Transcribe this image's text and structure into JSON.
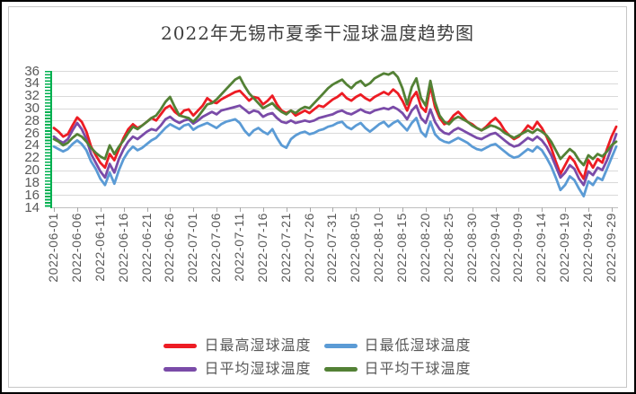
{
  "chart_data": {
    "type": "line",
    "title": "2022年无锡市夏季干湿球温度趋势图",
    "xlabel": "",
    "ylabel": "",
    "x_start": "2022-06-01",
    "x_end": "2022-09-30",
    "n_points": 122,
    "x_tick_labels": [
      "2022-06-01",
      "2022-06-06",
      "2022-06-11",
      "2022-06-16",
      "2022-06-21",
      "2022-06-26",
      "2022-07-01",
      "2022-07-06",
      "2022-07-11",
      "2022-07-16",
      "2022-07-21",
      "2022-07-26",
      "2022-07-31",
      "2022-08-05",
      "2022-08-10",
      "2022-08-15",
      "2022-08-20",
      "2022-08-25",
      "2022-08-30",
      "2022-09-04",
      "2022-09-09",
      "2022-09-14",
      "2022-09-19",
      "2022-09-24",
      "2022-09-29"
    ],
    "x_tick_interval_days": 5,
    "ylim": [
      14,
      36
    ],
    "y_ticks": [
      14,
      16,
      18,
      20,
      22,
      24,
      26,
      28,
      30,
      32,
      34,
      36
    ],
    "grid": true,
    "legend_position": "bottom",
    "colors": {
      "y_axis": "#00B050",
      "x_axis": "#bfbfbf",
      "gridline": "#d9d9d9",
      "tick": "#a6a6a6",
      "label_text": "#595959",
      "title_text": "#3f3f3f"
    },
    "series": [
      {
        "name": "日最高湿球温度",
        "key": "max-wet-bulb",
        "color": "#ED1C24",
        "values": [
          26.8,
          26.2,
          25.4,
          25.8,
          27.2,
          28.5,
          27.8,
          26.2,
          23.8,
          22.4,
          21.2,
          20.4,
          22.6,
          21.6,
          23.4,
          25.2,
          26.6,
          27.4,
          26.8,
          27.2,
          27.8,
          28.4,
          28.0,
          29.0,
          30.0,
          30.4,
          29.4,
          28.8,
          29.6,
          29.8,
          28.8,
          29.6,
          30.4,
          31.6,
          31.0,
          30.8,
          31.4,
          31.8,
          32.2,
          32.6,
          32.8,
          32.0,
          31.2,
          31.8,
          31.6,
          30.6,
          31.2,
          32.0,
          30.6,
          29.6,
          29.2,
          29.6,
          28.8,
          29.2,
          29.6,
          29.2,
          29.8,
          30.4,
          30.2,
          30.8,
          31.4,
          31.8,
          32.4,
          31.6,
          31.2,
          31.8,
          32.2,
          31.6,
          31.2,
          31.8,
          32.2,
          32.6,
          32.2,
          33.0,
          32.4,
          31.2,
          29.6,
          31.6,
          32.6,
          30.2,
          29.4,
          33.6,
          30.2,
          28.4,
          27.4,
          27.8,
          28.8,
          29.4,
          28.6,
          27.8,
          27.4,
          26.8,
          26.4,
          27.0,
          27.8,
          28.4,
          27.6,
          26.4,
          25.6,
          25.0,
          25.4,
          26.2,
          27.2,
          26.6,
          27.8,
          26.8,
          25.4,
          23.6,
          21.4,
          19.4,
          20.8,
          22.2,
          21.4,
          19.8,
          18.6,
          21.6,
          20.4,
          21.8,
          21.2,
          23.4,
          25.4,
          27.0
        ]
      },
      {
        "name": "日最低湿球温度",
        "key": "min-wet-bulb",
        "color": "#5B9BD5",
        "values": [
          23.8,
          23.4,
          23.0,
          23.4,
          24.2,
          24.8,
          24.2,
          23.2,
          21.4,
          20.2,
          18.6,
          17.6,
          19.6,
          17.8,
          20.0,
          21.8,
          23.0,
          23.8,
          23.2,
          23.6,
          24.2,
          24.8,
          25.2,
          26.0,
          26.8,
          27.4,
          27.0,
          26.6,
          27.2,
          27.4,
          26.5,
          27.0,
          27.3,
          27.6,
          27.2,
          26.8,
          27.4,
          27.8,
          28.0,
          28.2,
          27.6,
          26.4,
          25.6,
          26.4,
          26.8,
          26.2,
          25.8,
          26.6,
          25.2,
          24.0,
          23.6,
          25.0,
          25.6,
          26.0,
          26.2,
          25.8,
          26.0,
          26.4,
          26.6,
          27.0,
          27.2,
          27.6,
          27.8,
          27.0,
          26.6,
          27.2,
          27.6,
          26.8,
          26.2,
          26.8,
          27.4,
          27.8,
          27.0,
          27.6,
          28.0,
          27.2,
          26.4,
          27.6,
          28.4,
          26.2,
          25.4,
          27.8,
          25.8,
          25.0,
          24.6,
          24.4,
          24.8,
          25.2,
          24.8,
          24.4,
          23.8,
          23.4,
          23.2,
          23.6,
          24.0,
          24.2,
          23.6,
          23.0,
          22.4,
          22.0,
          22.2,
          22.8,
          23.4,
          23.0,
          23.8,
          23.2,
          22.0,
          20.6,
          18.8,
          16.8,
          17.6,
          19.0,
          18.4,
          17.0,
          15.8,
          18.2,
          17.6,
          18.8,
          18.4,
          20.2,
          22.0,
          23.8
        ]
      },
      {
        "name": "日平均湿球温度",
        "key": "avg-wet-bulb",
        "color": "#7A4BA8",
        "values": [
          25.4,
          24.8,
          24.4,
          25.0,
          26.4,
          27.6,
          26.6,
          25.0,
          22.6,
          21.2,
          19.8,
          18.8,
          21.0,
          19.6,
          21.8,
          23.4,
          24.6,
          25.4,
          25.0,
          25.6,
          26.2,
          26.6,
          26.4,
          27.2,
          28.2,
          28.6,
          28.0,
          27.6,
          28.0,
          28.2,
          27.5,
          28.0,
          28.6,
          29.0,
          29.4,
          29.0,
          29.6,
          29.8,
          30.0,
          30.2,
          30.4,
          29.8,
          29.2,
          29.6,
          29.4,
          28.6,
          29.0,
          29.2,
          28.4,
          27.8,
          27.6,
          28.0,
          27.6,
          27.8,
          28.0,
          27.8,
          28.0,
          28.4,
          28.6,
          28.8,
          29.0,
          29.4,
          29.6,
          29.2,
          29.0,
          29.4,
          29.8,
          29.4,
          29.2,
          29.6,
          29.8,
          30.0,
          29.8,
          30.2,
          29.8,
          29.2,
          28.2,
          29.6,
          30.4,
          28.4,
          27.6,
          29.8,
          27.8,
          26.6,
          26.0,
          25.8,
          26.4,
          26.8,
          26.4,
          26.0,
          25.6,
          25.2,
          25.0,
          25.4,
          25.8,
          26.0,
          25.4,
          24.8,
          24.2,
          23.8,
          24.0,
          24.6,
          25.2,
          24.8,
          25.4,
          24.8,
          23.8,
          22.4,
          20.6,
          18.8,
          19.6,
          20.8,
          20.2,
          18.6,
          17.6,
          19.8,
          19.2,
          20.4,
          20.0,
          21.6,
          23.6,
          25.8
        ]
      },
      {
        "name": "日平均干球温度",
        "key": "avg-dry-bulb",
        "color": "#538135",
        "values": [
          25.0,
          24.6,
          24.0,
          24.4,
          25.2,
          25.8,
          25.4,
          24.6,
          23.6,
          22.8,
          22.2,
          21.8,
          24.0,
          22.6,
          23.8,
          24.8,
          26.0,
          27.0,
          26.6,
          27.2,
          27.8,
          28.4,
          28.8,
          29.8,
          31.0,
          31.8,
          30.2,
          28.8,
          28.6,
          28.4,
          27.8,
          28.6,
          29.6,
          30.6,
          30.8,
          31.4,
          32.2,
          33.0,
          33.8,
          34.6,
          35.0,
          33.6,
          32.4,
          31.6,
          30.8,
          30.0,
          30.4,
          30.8,
          30.0,
          29.4,
          29.0,
          29.6,
          29.2,
          29.8,
          30.2,
          30.0,
          30.8,
          31.6,
          32.4,
          33.2,
          33.8,
          34.2,
          34.6,
          33.8,
          33.2,
          34.0,
          34.4,
          33.6,
          34.0,
          34.8,
          35.2,
          35.6,
          35.4,
          35.8,
          35.0,
          33.2,
          30.6,
          33.4,
          34.8,
          31.6,
          30.4,
          34.4,
          31.0,
          28.8,
          27.8,
          27.4,
          28.2,
          28.6,
          28.2,
          27.8,
          27.2,
          26.8,
          26.4,
          26.8,
          27.2,
          27.0,
          26.6,
          26.0,
          25.6,
          25.2,
          25.6,
          26.0,
          26.4,
          26.0,
          26.6,
          26.2,
          25.6,
          24.6,
          23.2,
          21.8,
          22.6,
          23.4,
          22.8,
          21.6,
          20.8,
          22.4,
          21.8,
          22.6,
          22.2,
          23.0,
          24.0,
          24.6
        ]
      }
    ],
    "legend_rows": [
      [
        0,
        1
      ],
      [
        2,
        3
      ]
    ]
  }
}
